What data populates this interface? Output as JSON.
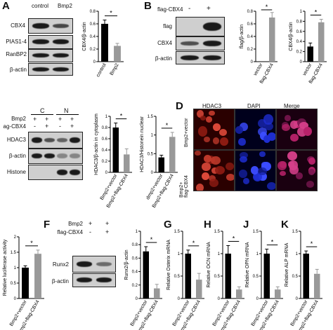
{
  "panels": {
    "A": {
      "letter": "A",
      "lanes": [
        "control",
        "Bmp2"
      ],
      "rows": [
        "CBX4",
        "PIAS1-4",
        "RanBP2",
        "β-actin"
      ]
    },
    "B": {
      "letter": "B",
      "lane_header": "flag-CBX4",
      "lane_signs": [
        "-",
        "+"
      ],
      "rows": [
        "flag",
        "CBX4",
        "β-actin"
      ]
    },
    "C": {
      "treat_rows": [
        "Bmp2",
        "ag-CBX4"
      ],
      "signs_bmp2": [
        "+",
        "+",
        "+",
        "+"
      ],
      "signs_cbx4": [
        "-",
        "+",
        "-",
        "+"
      ],
      "fractions": [
        "C",
        "N"
      ],
      "rows": [
        "HDAC3",
        "β-actin",
        "Histone"
      ]
    },
    "D": {
      "letter": "D",
      "columns": [
        "HDAC3",
        "DAPI",
        "Merge"
      ],
      "rows": [
        "Bmp2+vector",
        "Bmp2+\nflag-CBX4"
      ]
    },
    "F": {
      "letter": "F",
      "treat_rows": [
        "Bmp2",
        "flag-CBX4"
      ],
      "signs_bmp2": [
        "+",
        "+"
      ],
      "signs_cbx4": [
        "-",
        "+"
      ],
      "rows": [
        "Runx2",
        "β-actin"
      ]
    },
    "G": {
      "letter": "G"
    },
    "H": {
      "letter": "H"
    },
    "J": {
      "letter": "J"
    },
    "K": {
      "letter": "K"
    }
  },
  "chart_data": [
    {
      "id": "A-cbx4",
      "type": "bar",
      "categories": [
        "control",
        "Bmp2"
      ],
      "values": [
        0.6,
        0.25
      ],
      "errors": [
        0.06,
        0.04
      ],
      "colors": [
        "#000000",
        "#999999"
      ],
      "ylabel": "CBX4/β-actin",
      "yticks": [
        0,
        0.2,
        0.4,
        0.6,
        0.8
      ],
      "ylim": [
        0,
        0.8
      ],
      "sig": "*"
    },
    {
      "id": "B-flag",
      "type": "bar",
      "categories": [
        "vector",
        "flag-CBX4"
      ],
      "values": [
        0.0,
        0.7
      ],
      "errors": [
        0.0,
        0.08
      ],
      "colors": [
        "#000000",
        "#999999"
      ],
      "ylabel": "flag/β-actin",
      "yticks": [
        0,
        0.2,
        0.4,
        0.6,
        0.8
      ],
      "ylim": [
        0,
        0.8
      ],
      "sig": "*"
    },
    {
      "id": "B-cbx4",
      "type": "bar",
      "categories": [
        "vector",
        "flag-CBX4"
      ],
      "values": [
        0.3,
        0.78
      ],
      "errors": [
        0.07,
        0.06
      ],
      "colors": [
        "#000000",
        "#999999"
      ],
      "ylabel": "CBX4/β-actin",
      "yticks": [
        0,
        0.2,
        0.4,
        0.6,
        0.8,
        1.0
      ],
      "ylim": [
        0,
        1.0
      ],
      "sig": "*"
    },
    {
      "id": "C-cyto",
      "type": "bar",
      "categories": [
        "Bmp2+vector",
        "Bmp2+flag-CBX4"
      ],
      "values": [
        0.8,
        0.32
      ],
      "errors": [
        0.08,
        0.1
      ],
      "colors": [
        "#000000",
        "#999999"
      ],
      "ylabel": "HDAC3/β-actin in cytoplasm",
      "yticks": [
        0,
        0.2,
        0.4,
        0.6,
        0.8,
        1.0
      ],
      "ylim": [
        0,
        1.0
      ],
      "sig": "*"
    },
    {
      "id": "C-nuc",
      "type": "bar",
      "categories": [
        "dmp2+vector",
        "Bmp2+flag-CBX4"
      ],
      "values": [
        0.4,
        0.95
      ],
      "errors": [
        0.06,
        0.12
      ],
      "colors": [
        "#000000",
        "#999999"
      ],
      "ylabel": "HDAC3/Histonein nuclear",
      "yticks": [
        0,
        0.5,
        1.0,
        1.5
      ],
      "ylim": [
        0,
        1.5
      ],
      "sig": "*"
    },
    {
      "id": "E-luc",
      "type": "bar",
      "categories": [
        "Bmp2+vector",
        "Bmp2+flag-CBX4"
      ],
      "values": [
        1.0,
        1.45
      ],
      "errors": [
        0.06,
        0.12
      ],
      "colors": [
        "#000000",
        "#999999"
      ],
      "ylabel": "Relative luciferase activity",
      "yticks": [
        0,
        0.5,
        1.0,
        1.5,
        2.0
      ],
      "ylim": [
        0,
        2.0
      ],
      "sig": "*"
    },
    {
      "id": "F-runx2",
      "type": "bar",
      "categories": [
        "Bmp2+vector",
        "Bmp2+flag-CBX4"
      ],
      "values": [
        0.7,
        0.15
      ],
      "errors": [
        0.07,
        0.06
      ],
      "colors": [
        "#000000",
        "#999999"
      ],
      "ylabel": "Runx2/β-actin",
      "yticks": [
        0,
        0.2,
        0.4,
        0.6,
        0.8,
        1.0
      ],
      "ylim": [
        0,
        1.0
      ],
      "sig": "*"
    },
    {
      "id": "G-osx",
      "type": "bar",
      "categories": [
        "Bmp2+vector",
        "Bmp2+flag-CBX4"
      ],
      "values": [
        1.0,
        0.42
      ],
      "errors": [
        0.08,
        0.14
      ],
      "colors": [
        "#000000",
        "#999999"
      ],
      "ylabel": "Relative Osterix mRNA",
      "yticks": [
        0,
        0.5,
        1.0,
        1.5
      ],
      "ylim": [
        0,
        1.5
      ],
      "sig": "*"
    },
    {
      "id": "H-ocn",
      "type": "bar",
      "categories": [
        "Bmp2+vector",
        "Bmp2+flag-CBX4"
      ],
      "values": [
        1.0,
        0.2
      ],
      "errors": [
        0.18,
        0.06
      ],
      "colors": [
        "#000000",
        "#999999"
      ],
      "ylabel": "Relative OCN mRNA",
      "yticks": [
        0,
        0.5,
        1.0,
        1.5
      ],
      "ylim": [
        0,
        1.5
      ],
      "sig": "*"
    },
    {
      "id": "J-opn",
      "type": "bar",
      "categories": [
        "Bmp2+vector",
        "Bmp2+flag-CBX4"
      ],
      "values": [
        1.0,
        0.2
      ],
      "errors": [
        0.1,
        0.06
      ],
      "colors": [
        "#000000",
        "#999999"
      ],
      "ylabel": "Relative OPN mRNA",
      "yticks": [
        0,
        0.5,
        1.0,
        1.5
      ],
      "ylim": [
        0,
        1.5
      ],
      "sig": "*"
    },
    {
      "id": "K-alp",
      "type": "bar",
      "categories": [
        "Bmp2+vector",
        "Bmp2+flag-CBX4"
      ],
      "values": [
        1.0,
        0.55
      ],
      "errors": [
        0.06,
        0.1
      ],
      "colors": [
        "#000000",
        "#999999"
      ],
      "ylabel": "Relative ALP mRNA",
      "yticks": [
        0,
        0.5,
        1.0,
        1.5
      ],
      "ylim": [
        0,
        1.5
      ],
      "sig": "*"
    }
  ]
}
